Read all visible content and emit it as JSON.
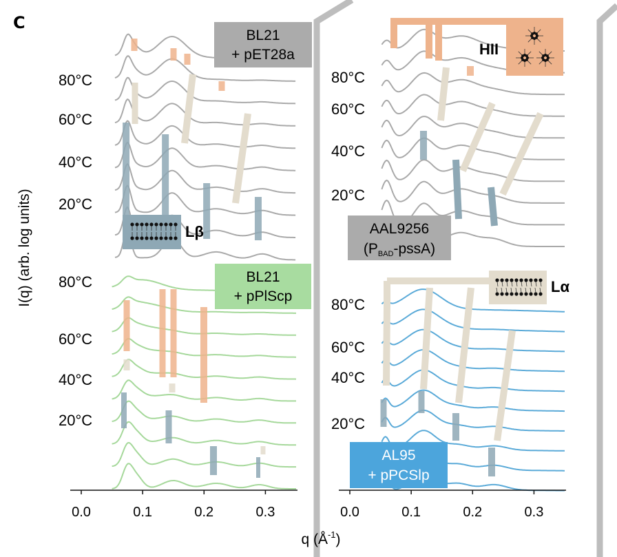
{
  "figure": {
    "panel_letter": "C"
  },
  "temperature_labels": [
    "80°C",
    "60°C",
    "40°C",
    "20°C"
  ],
  "chart_data": [
    {
      "type": "line",
      "strain": [
        "BL21",
        "+ pET28a"
      ],
      "x_range": [
        0.0,
        0.35
      ],
      "n_curves": 10,
      "color": "#a9a9a9",
      "label_color": "#ababab",
      "peaks_lbeta": [
        0.073,
        0.146,
        0.22,
        0.295
      ],
      "peaks_hii": [
        0.085,
        0.148,
        0.17,
        0.23
      ],
      "phase_label": "Lβ"
    },
    {
      "type": "line",
      "strain": [
        "AAL9256",
        "(P",
        "BAD",
        "-pssA)"
      ],
      "x_range": [
        0.0,
        0.35
      ],
      "n_curves": 10,
      "color": "#a9a9a9",
      "label_color": "#ababab",
      "peaks_lbeta": [
        0.12,
        0.175,
        0.235
      ],
      "peaks_hii": [
        0.07,
        0.13,
        0.15,
        0.2
      ],
      "phase_label": "HII"
    },
    {
      "type": "line",
      "strain": [
        "BL21",
        "+ pPlScp"
      ],
      "x_range": [
        0.0,
        0.35
      ],
      "n_curves": 10,
      "color": "#a5d89a",
      "label_color": "#a8dca0",
      "peaks_lbeta": [
        0.075,
        0.148,
        0.22,
        0.29
      ],
      "peaks_hii": [
        0.08,
        0.13,
        0.15,
        0.2
      ]
    },
    {
      "type": "line",
      "strain": [
        "AL95",
        "+ pPCSlp"
      ],
      "x_range": [
        0.0,
        0.35
      ],
      "n_curves": 10,
      "color": "#5aaad8",
      "label_color": "#4ca5dc",
      "peaks_lbeta": [
        0.058,
        0.12,
        0.175,
        0.235
      ],
      "peaks_la": [
        0.063,
        0.13,
        0.195,
        0.265
      ],
      "phase_label": "Lα"
    }
  ],
  "phase_colors": {
    "Lbeta": "#8ea8b5",
    "HII": "#eeb38c",
    "Lalpha": "#e3dccd"
  },
  "axes": {
    "xticks": [
      "0.0",
      "0.1",
      "0.2",
      "0.3"
    ],
    "xlabel_main": "q (Å",
    "xlabel_sup": "-1",
    "xlabel_close": ")",
    "ylabel": "I(q) (arb. log units)"
  }
}
